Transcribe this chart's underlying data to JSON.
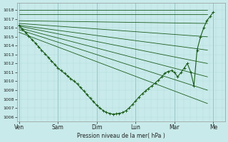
{
  "bg_color": "#c8eaea",
  "grid_minor_color": "#b0d8d8",
  "grid_major_color": "#90c0c0",
  "line_color": "#1a5c1a",
  "xlabel": "Pression niveau de la mer( hPa )",
  "ylim": [
    1005.5,
    1018.8
  ],
  "yticks": [
    1006,
    1007,
    1008,
    1009,
    1010,
    1011,
    1012,
    1013,
    1014,
    1015,
    1016,
    1017,
    1018
  ],
  "xlim": [
    -0.05,
    5.3
  ],
  "days": [
    "Ven",
    "Sam",
    "Dim",
    "Lun",
    "Mar",
    "Me"
  ],
  "day_x": [
    0,
    1,
    2,
    3,
    4,
    5
  ],
  "fan_lines": [
    {
      "x": [
        0.0,
        4.85
      ],
      "y": [
        1018.0,
        1018.0
      ]
    },
    {
      "x": [
        0.0,
        4.85
      ],
      "y": [
        1017.5,
        1017.5
      ]
    },
    {
      "x": [
        0.0,
        4.85
      ],
      "y": [
        1016.8,
        1016.5
      ]
    },
    {
      "x": [
        0.0,
        4.85
      ],
      "y": [
        1016.5,
        1015.0
      ]
    },
    {
      "x": [
        0.0,
        4.85
      ],
      "y": [
        1016.3,
        1013.5
      ]
    },
    {
      "x": [
        0.0,
        4.85
      ],
      "y": [
        1016.2,
        1012.0
      ]
    },
    {
      "x": [
        0.0,
        4.85
      ],
      "y": [
        1016.0,
        1010.5
      ]
    },
    {
      "x": [
        0.0,
        4.85
      ],
      "y": [
        1015.8,
        1009.0
      ]
    },
    {
      "x": [
        0.0,
        4.85
      ],
      "y": [
        1015.5,
        1007.5
      ]
    }
  ],
  "main_x": [
    0.0,
    0.08,
    0.17,
    0.25,
    0.33,
    0.42,
    0.5,
    0.58,
    0.67,
    0.75,
    0.83,
    0.92,
    1.0,
    1.08,
    1.17,
    1.25,
    1.33,
    1.42,
    1.5,
    1.58,
    1.67,
    1.75,
    1.83,
    1.92,
    2.0,
    2.08,
    2.17,
    2.25,
    2.33,
    2.42,
    2.5,
    2.58,
    2.67,
    2.75,
    2.83,
    2.92,
    3.0,
    3.08,
    3.17,
    3.25,
    3.33,
    3.42,
    3.5,
    3.58,
    3.67,
    3.75,
    3.83,
    3.92,
    4.0,
    4.08,
    4.17,
    4.25,
    4.33,
    4.42,
    4.5,
    4.58,
    4.67,
    4.75,
    4.83,
    4.92,
    5.0
  ],
  "main_y": [
    1016.3,
    1015.9,
    1015.5,
    1015.1,
    1014.7,
    1014.3,
    1013.9,
    1013.5,
    1013.1,
    1012.7,
    1012.3,
    1011.9,
    1011.5,
    1011.2,
    1010.9,
    1010.6,
    1010.3,
    1010.0,
    1009.7,
    1009.3,
    1008.9,
    1008.5,
    1008.1,
    1007.7,
    1007.3,
    1007.0,
    1006.7,
    1006.5,
    1006.4,
    1006.3,
    1006.35,
    1006.4,
    1006.5,
    1006.7,
    1007.0,
    1007.4,
    1007.8,
    1008.2,
    1008.6,
    1008.9,
    1009.2,
    1009.5,
    1009.8,
    1010.1,
    1010.5,
    1010.9,
    1011.1,
    1011.2,
    1011.0,
    1010.5,
    1011.0,
    1011.5,
    1012.0,
    1011.0,
    1009.5,
    1013.5,
    1015.0,
    1016.0,
    1016.8,
    1017.3,
    1017.8
  ]
}
